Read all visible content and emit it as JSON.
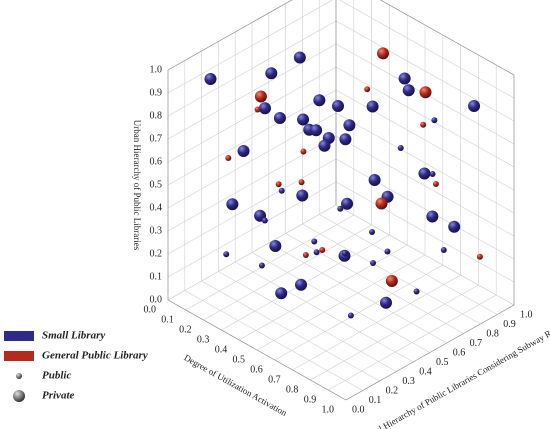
{
  "chart_data": {
    "type": "scatter3d",
    "xlabel": "Degree of Utilization Activation",
    "ylabel": "Spatial Hierarchy of Public Libraries Considering Subway Routes",
    "zlabel": "Urban Hierarchy of Public Libraries",
    "xlim": [
      0,
      1
    ],
    "ylim": [
      0,
      1
    ],
    "zlim": [
      0,
      1
    ],
    "xticks": [
      {
        "value": 0,
        "label": "0.0"
      },
      0.1,
      0.2,
      0.3,
      0.4,
      0.5,
      0.6,
      0.7,
      0.8,
      0.9,
      {
        "value": 1,
        "label": "1.0"
      }
    ],
    "yticks": [
      {
        "value": 0,
        "label": "0.0"
      },
      0.1,
      0.2,
      0.3,
      0.4,
      0.5,
      0.6,
      0.7,
      0.8,
      0.9,
      {
        "value": 1,
        "label": "1.0"
      }
    ],
    "zticks": [
      {
        "value": 0,
        "label": "0.0"
      },
      0.1,
      0.2,
      0.3,
      0.4,
      0.5,
      0.6,
      0.7,
      0.8,
      0.9,
      {
        "value": 1,
        "label": "1.0"
      }
    ],
    "grid": true,
    "legend": "bottom-left",
    "size_legend": [
      "Public",
      "Private"
    ],
    "series": [
      {
        "name": "Small Library",
        "color": "#2e2a88",
        "x": [
          0.05,
          0.12,
          0.2,
          0.33,
          0.41,
          0.5,
          0.62,
          0.7,
          0.85,
          0.92,
          0.1,
          0.25,
          0.38,
          0.47,
          0.55,
          0.68,
          0.77,
          0.9,
          0.15,
          0.3,
          0.44,
          0.58,
          0.66,
          0.8,
          0.95,
          0.08,
          0.22,
          0.35,
          0.52,
          0.73,
          0.6,
          0.4,
          0.18,
          0.28,
          0.87,
          0.5,
          0.65,
          0.78,
          0.03,
          0.45,
          0.32,
          0.57,
          0.83,
          0.12,
          0.7,
          0.26,
          0.48,
          0.62,
          0.93,
          0.36
        ],
        "y": [
          0.2,
          0.55,
          0.8,
          0.1,
          0.45,
          0.7,
          0.3,
          0.9,
          0.15,
          0.6,
          0.95,
          0.35,
          0.65,
          0.05,
          0.85,
          0.5,
          0.25,
          0.75,
          0.4,
          0.9,
          0.2,
          0.6,
          0.1,
          0.45,
          0.3,
          0.7,
          0.15,
          0.5,
          0.35,
          0.8,
          0.95,
          0.25,
          0.65,
          0.05,
          0.9,
          0.55,
          0.4,
          0.7,
          0.85,
          0.1,
          0.3,
          0.2,
          0.6,
          0.45,
          0.05,
          0.75,
          0.9,
          0.65,
          0.4,
          0.55
        ],
        "z": [
          0.9,
          0.3,
          0.6,
          0.75,
          0.2,
          0.45,
          0.85,
          0.15,
          0.5,
          0.7,
          0.35,
          0.95,
          0.1,
          0.55,
          0.8,
          0.25,
          0.65,
          0.4,
          0.05,
          0.6,
          0.9,
          0.3,
          0.7,
          0.15,
          0.5,
          0.8,
          0.45,
          0.2,
          0.95,
          0.35,
          0.65,
          0.1,
          0.55,
          0.3,
          0.85,
          0.75,
          0.05,
          0.6,
          0.4,
          0.5,
          0.25,
          0.95,
          0.15,
          0.7,
          0.35,
          0.2,
          0.8,
          0.45,
          0.9,
          0.6
        ],
        "ownership": [
          "Private",
          "Public",
          "Private",
          "Private",
          "Public",
          "Private",
          "Private",
          "Public",
          "Private",
          "Public",
          "Private",
          "Private",
          "Public",
          "Private",
          "Private",
          "Public",
          "Private",
          "Private",
          "Public",
          "Private",
          "Private",
          "Public",
          "Private",
          "Private",
          "Public",
          "Private",
          "Private",
          "Public",
          "Private",
          "Private",
          "Public",
          "Private",
          "Private",
          "Public",
          "Private",
          "Private",
          "Public",
          "Private",
          "Private",
          "Public",
          "Private",
          "Private",
          "Public",
          "Private",
          "Private",
          "Public",
          "Private",
          "Private",
          "Public",
          "Private"
        ]
      },
      {
        "name": "General Public Library",
        "color": "#b52a1f",
        "x": [
          0.1,
          0.22,
          0.35,
          0.48,
          0.6,
          0.75,
          0.88,
          0.15,
          0.3,
          0.55,
          0.68,
          0.82,
          0.42,
          0.05,
          0.95,
          0.5
        ],
        "y": [
          0.7,
          0.3,
          0.9,
          0.15,
          0.55,
          0.8,
          0.4,
          0.2,
          0.6,
          0.95,
          0.1,
          0.65,
          0.35,
          0.5,
          0.85,
          0.75
        ],
        "z": [
          0.4,
          0.8,
          0.2,
          0.65,
          0.95,
          0.5,
          0.3,
          0.6,
          0.1,
          0.75,
          0.45,
          0.85,
          0.55,
          0.7,
          0.25,
          0.98
        ],
        "ownership": [
          "Public",
          "Public",
          "Private",
          "Public",
          "Public",
          "Public",
          "Private",
          "Public",
          "Public",
          "Private",
          "Public",
          "Public",
          "Public",
          "Private",
          "Public",
          "Private"
        ]
      }
    ]
  }
}
